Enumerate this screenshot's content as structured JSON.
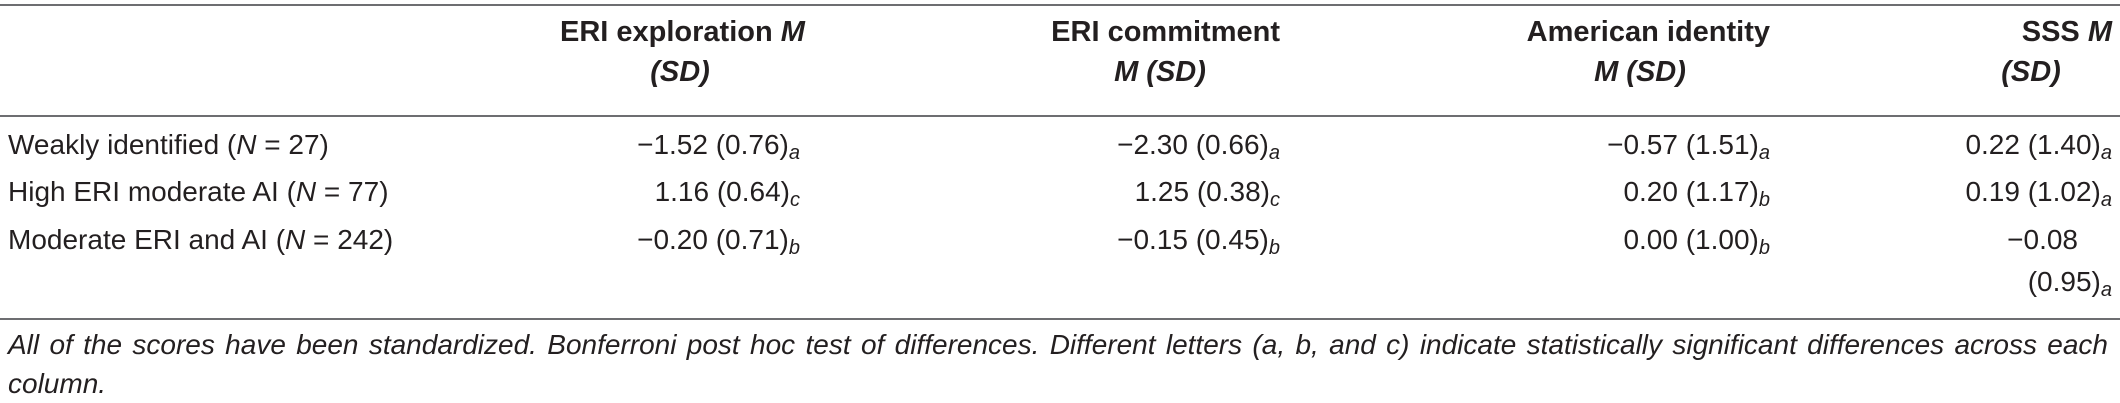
{
  "headers": {
    "col1": {
      "line1_text": "ERI exploration ",
      "line1_ital": "M",
      "line2": "(SD)"
    },
    "col2": {
      "line1": "ERI commitment",
      "line2_ital": "M (SD)"
    },
    "col3": {
      "line1": "American identity",
      "line2_ital": "M (SD)"
    },
    "col4": {
      "line1_text": "SSS ",
      "line1_ital": "M",
      "line2": "(SD)"
    }
  },
  "rows": [
    {
      "label_pre": "Weakly identified (",
      "label_n": "N",
      "label_post": " = 27)",
      "cells": [
        {
          "value": "−1.52 (0.76)",
          "sub": "a"
        },
        {
          "value": "−2.30 (0.66)",
          "sub": "a"
        },
        {
          "value": "−0.57 (1.51)",
          "sub": "a"
        },
        {
          "value": "0.22 (1.40)",
          "sub": "a"
        }
      ]
    },
    {
      "label_pre": "High ERI moderate AI (",
      "label_n": "N",
      "label_post": " = 77)",
      "cells": [
        {
          "value": "1.16 (0.64)",
          "sub": "c"
        },
        {
          "value": "1.25 (0.38)",
          "sub": "c"
        },
        {
          "value": "0.20 (1.17)",
          "sub": "b"
        },
        {
          "value": "0.19 (1.02)",
          "sub": "a"
        }
      ]
    },
    {
      "label_pre": "Moderate ERI and AI (",
      "label_n": "N",
      "label_post": " = 242)",
      "cells": [
        {
          "value": "−0.20 (0.71)",
          "sub": "b"
        },
        {
          "value": "−0.15 (0.45)",
          "sub": "b"
        },
        {
          "value": "0.00 (1.00)",
          "sub": "b"
        },
        {
          "value_line1": "−0.08",
          "value_line2": "(0.95)",
          "sub": "a"
        }
      ]
    }
  ],
  "note": "All of the scores have been standardized. Bonferroni post hoc test of differences. Different letters (a, b, and c) indicate statistically significant differences across each column."
}
